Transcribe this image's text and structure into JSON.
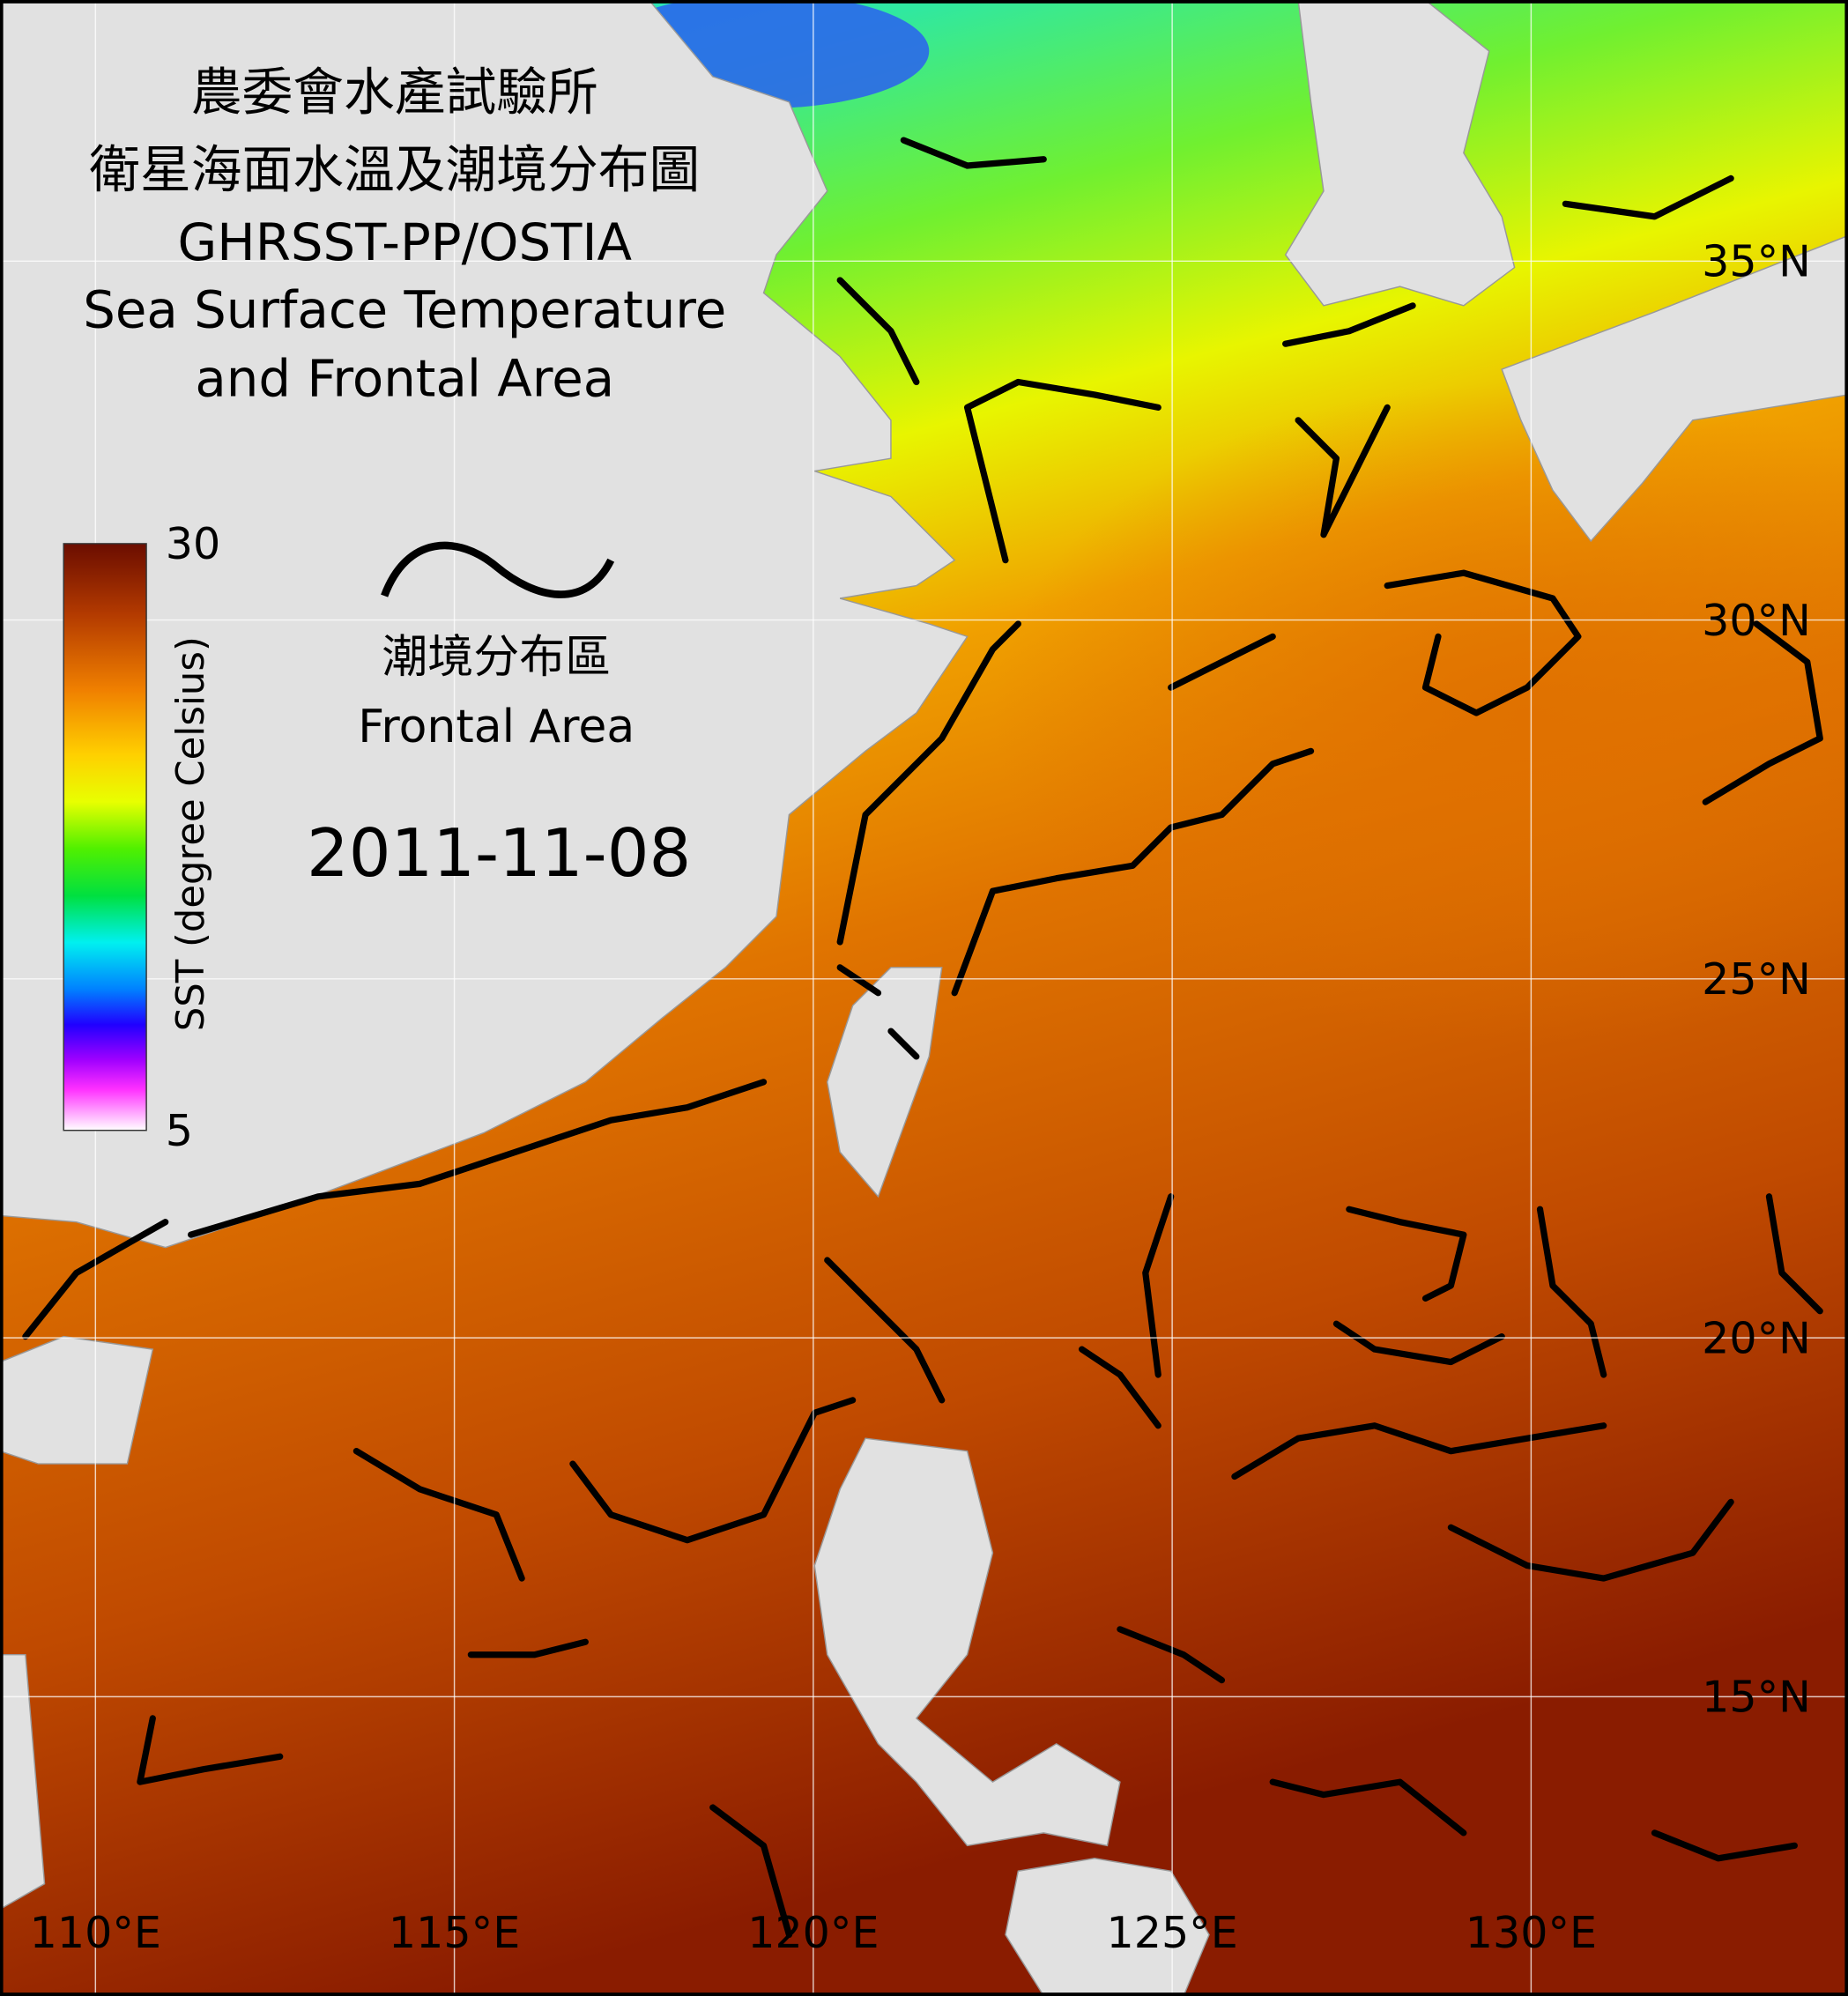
{
  "title_lines": [
    "農委會水產試驗所",
    "衛星海面水溫及潮境分布圖",
    "GHRSST-PP/OSTIA",
    "Sea Surface Temperature",
    "and Frontal Area"
  ],
  "colorbar": {
    "range": [
      5,
      30
    ],
    "label": "SST (degree Celsius)"
  },
  "legend": {
    "label_zh": "潮境分布區",
    "label_en": "Frontal Area"
  },
  "date": "2011-11-08",
  "lon_grid": [
    {
      "value": 110,
      "label": "110°E"
    },
    {
      "value": 115,
      "label": "115°E"
    },
    {
      "value": 120,
      "label": "120°E"
    },
    {
      "value": 125,
      "label": "125°E"
    },
    {
      "value": 130,
      "label": "130°E"
    }
  ],
  "lat_grid": [
    {
      "value": 35,
      "label": "35°N"
    },
    {
      "value": 30,
      "label": "30°N"
    },
    {
      "value": 25,
      "label": "25°N"
    },
    {
      "value": 20,
      "label": "20°N"
    },
    {
      "value": 15,
      "label": "15°N"
    }
  ]
}
